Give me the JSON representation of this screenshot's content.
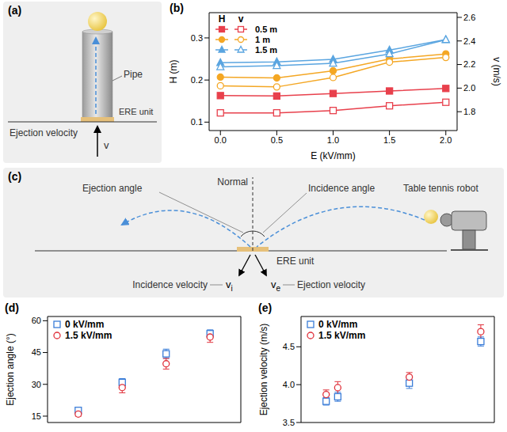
{
  "diagram_a": {
    "panel_label": "(a)",
    "labels": {
      "pipe": "Pipe",
      "unit": "ERE unit",
      "ejection_velocity": "Ejection velocity",
      "velocity_symbol": "v"
    }
  },
  "diagram_c": {
    "panel_label": "(c)",
    "labels": {
      "ejection_angle": "Ejection angle",
      "normal": "Normal",
      "incidence_angle": "Incidence angle",
      "robot": "Table tennis robot",
      "unit": "ERE unit",
      "incidence_velocity": "Incidence velocity",
      "ejection_velocity": "Ejection velocity",
      "vi": {
        "symbol": "v",
        "subscript": "i"
      },
      "ve": {
        "symbol": "v",
        "subscript": "e"
      }
    }
  },
  "chart_data": [
    {
      "panel_label": "(b)",
      "type": "line",
      "x_label": "E (kV/mm)",
      "y_label": "H (m)",
      "y2_label": "v (m/s)",
      "x": [
        0,
        0.5,
        1,
        1.5,
        2
      ],
      "xlim": [
        -0.1,
        2.1
      ],
      "xticks": [
        {
          "value": 0,
          "label": "0.0"
        },
        0.5,
        {
          "value": 1,
          "label": "1.0"
        },
        1.5,
        {
          "value": 2,
          "label": "2.0"
        }
      ],
      "ylim": [
        0.08,
        0.36
      ],
      "yticks": [
        0.1,
        0.2,
        0.3
      ],
      "y2lim": [
        1.64,
        2.64
      ],
      "y2ticks": [
        1.8,
        {
          "value": 2,
          "label": "2.0"
        },
        2.2,
        2.4,
        2.6
      ],
      "legend": "upper left",
      "series": [
        {
          "name": "0.5 m",
          "group": "H",
          "color": "#e8404c",
          "marker": "square",
          "values": [
            0.163,
            0.162,
            0.168,
            0.174,
            0.18
          ]
        },
        {
          "name": "0.5 m",
          "group": "v",
          "axis": "y2",
          "color": "#e8404c",
          "marker": "open square",
          "values": [
            1.79,
            1.79,
            1.81,
            1.85,
            1.88
          ]
        },
        {
          "name": "1 m",
          "group": "H",
          "color": "#f4a724",
          "marker": "circle",
          "values": [
            0.207,
            0.205,
            0.222,
            0.25,
            0.262
          ]
        },
        {
          "name": "1 m",
          "group": "v",
          "axis": "y2",
          "color": "#f4a724",
          "marker": "open circle",
          "values": [
            2.02,
            2.01,
            2.09,
            2.22,
            2.26
          ]
        },
        {
          "name": "1.5 m",
          "group": "H",
          "color": "#5aa5e0",
          "marker": "triangle",
          "values": [
            0.241,
            0.243,
            0.249,
            0.271,
            0.296
          ]
        },
        {
          "name": "1.5 m",
          "group": "v",
          "axis": "y2",
          "color": "#5aa5e0",
          "marker": "open triangle",
          "values": [
            2.18,
            2.19,
            2.21,
            2.29,
            2.41
          ]
        }
      ]
    },
    {
      "panel_label": "(d)",
      "type": "scatter",
      "y_label": "Ejection angle (°)",
      "x": [
        1,
        2,
        3,
        4
      ],
      "xlim": [
        0.3,
        4.7
      ],
      "ylim": [
        12,
        62
      ],
      "yticks": [
        15,
        30,
        45,
        60
      ],
      "tick_labels": "y",
      "legend": "upper left",
      "series": [
        {
          "name": "0 kV/mm",
          "color": "#3b7dd8",
          "marker": "open square",
          "values": [
            17.7,
            30.9,
            44.4,
            53.9
          ],
          "errors": [
            1.2,
            1.8,
            2.2,
            1.8
          ]
        },
        {
          "name": "1.5 kV/mm",
          "color": "#e0323c",
          "marker": "open circle",
          "values": [
            16.0,
            28.5,
            39.7,
            52.3
          ],
          "errors": [
            1.0,
            2.5,
            2.5,
            2.5
          ]
        }
      ]
    },
    {
      "panel_label": "(e)",
      "type": "scatter",
      "y_label": "Ejection velocity (m/s)",
      "x": [
        1.3,
        1.9,
        5.6,
        9.3
      ],
      "xlim": [
        0,
        10
      ],
      "ylim": [
        3.5,
        4.9
      ],
      "yticks": [
        3.5,
        {
          "value": 4,
          "label": "4.0"
        },
        4.5
      ],
      "tick_labels": "y",
      "legend": "upper left",
      "series": [
        {
          "name": "0 kV/mm",
          "color": "#3b7dd8",
          "marker": "open square",
          "values": [
            3.78,
            3.84,
            4.02,
            4.57
          ],
          "errors": [
            0.05,
            0.06,
            0.07,
            0.06
          ]
        },
        {
          "name": "1.5 kV/mm",
          "color": "#e0323c",
          "marker": "open circle",
          "values": [
            3.87,
            3.96,
            4.1,
            4.7
          ],
          "errors": [
            0.06,
            0.08,
            0.06,
            0.09
          ]
        }
      ]
    }
  ]
}
